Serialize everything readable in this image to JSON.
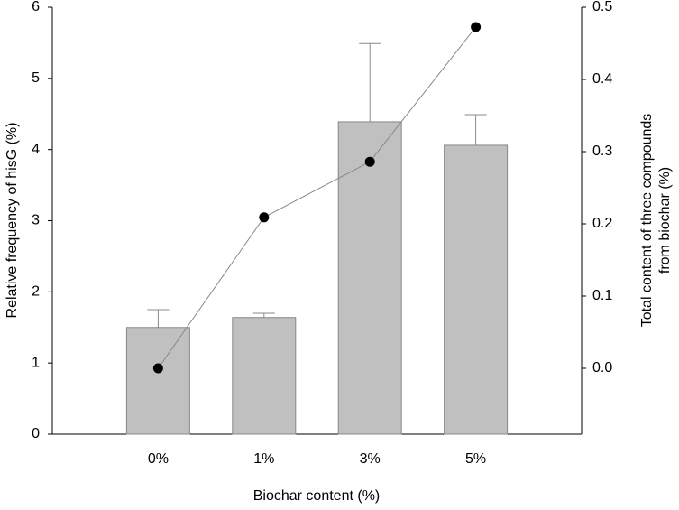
{
  "chart_data": {
    "type": "bar",
    "xlabel": "Biochar content (%)",
    "ylabel": "Relative frequency of hisG (%)",
    "y2label": [
      "Total content of three compounds",
      "from biochar (%)"
    ],
    "categories": [
      "0%",
      "1%",
      "3%",
      "5%"
    ],
    "series": [
      {
        "type": "bar",
        "color": "#c0c0c0",
        "values": [
          1.5,
          1.64,
          4.39,
          4.06
        ],
        "errors": [
          0.25,
          0.06,
          1.1,
          0.43
        ]
      },
      {
        "type": "line",
        "axis": "y2",
        "color": "#000000",
        "values": [
          0,
          0.209,
          0.286,
          0.4725
        ]
      }
    ],
    "ylim": [
      0,
      6
    ],
    "yticks": [
      0,
      1,
      2,
      3,
      4,
      5,
      6
    ],
    "y2lim": [
      -0.09125,
      0.5
    ],
    "y2ticks": [
      {
        "value": 0,
        "label": "0.0"
      },
      0.1,
      0.2,
      0.3,
      0.4,
      0.5
    ],
    "grid": false
  }
}
